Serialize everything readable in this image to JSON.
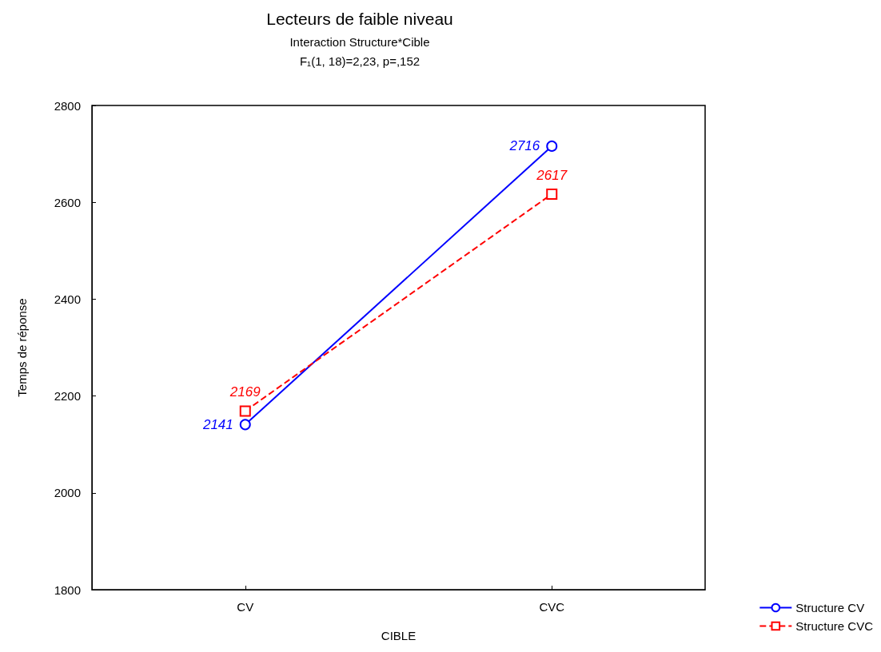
{
  "chart_data": {
    "type": "line",
    "title": "Lecteurs de faible niveau",
    "subtitle": "Interaction Structure*Cible\nF₁(1, 18)=2,23, p=,152",
    "xlabel": "CIBLE",
    "ylabel": "Temps de réponse",
    "categories": [
      "CV",
      "CVC"
    ],
    "series": [
      {
        "name": "Structure CV",
        "color": "#0000ff",
        "values": [
          2141,
          2716
        ],
        "marker": "circle",
        "line_style": "solid"
      },
      {
        "name": "Structure CVC",
        "color": "#ff0000",
        "values": [
          2169,
          2617
        ],
        "marker": "square",
        "line_style": "dashed"
      }
    ],
    "ylim": [
      1800,
      2800
    ],
    "yticks": [
      1800,
      2000,
      2200,
      2400,
      2600,
      2800
    ],
    "grid": false,
    "legend": "bottom right",
    "data_labels": true
  }
}
